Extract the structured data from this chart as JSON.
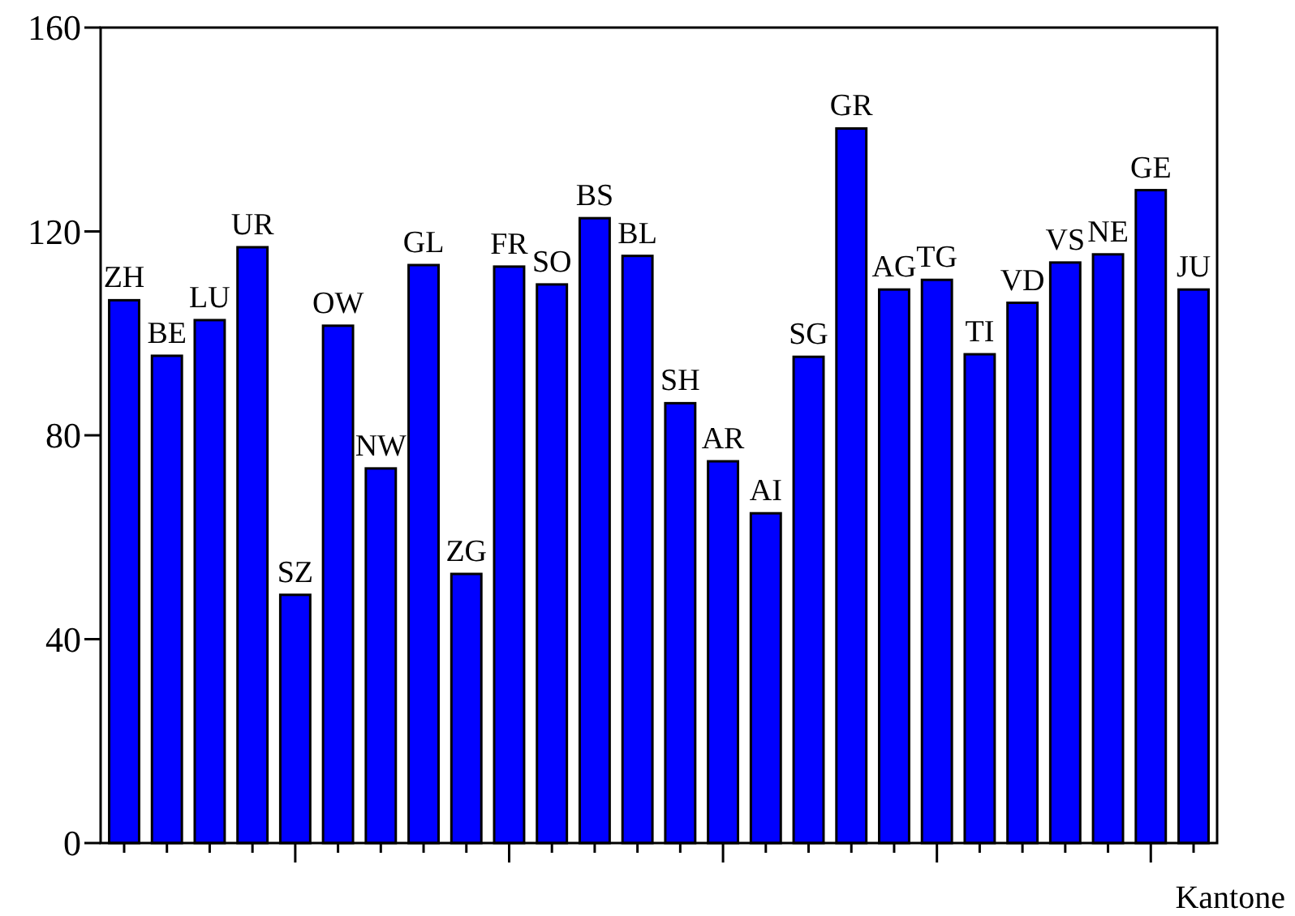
{
  "chart_data": {
    "type": "bar",
    "xlabel": "Kantone",
    "categories": [
      "ZH",
      "BE",
      "LU",
      "UR",
      "SZ",
      "OW",
      "NW",
      "GL",
      "ZG",
      "FR",
      "SO",
      "BS",
      "BL",
      "SH",
      "AR",
      "AI",
      "SG",
      "GR",
      "AG",
      "TG",
      "TI",
      "VD",
      "VS",
      "NE",
      "GE",
      "JU"
    ],
    "values": [
      106.5,
      95.6,
      102.6,
      116.9,
      48.7,
      101.5,
      73.5,
      113.4,
      52.8,
      113.1,
      109.6,
      122.6,
      115.2,
      86.3,
      74.9,
      64.7,
      95.4,
      140.2,
      108.6,
      110.5,
      95.9,
      106.0,
      113.9,
      115.5,
      128.1,
      108.6
    ],
    "color": "#0000ff",
    "ylim": [
      0,
      160
    ],
    "yticks": [
      0,
      40,
      80,
      120,
      160
    ],
    "grid": false
  }
}
